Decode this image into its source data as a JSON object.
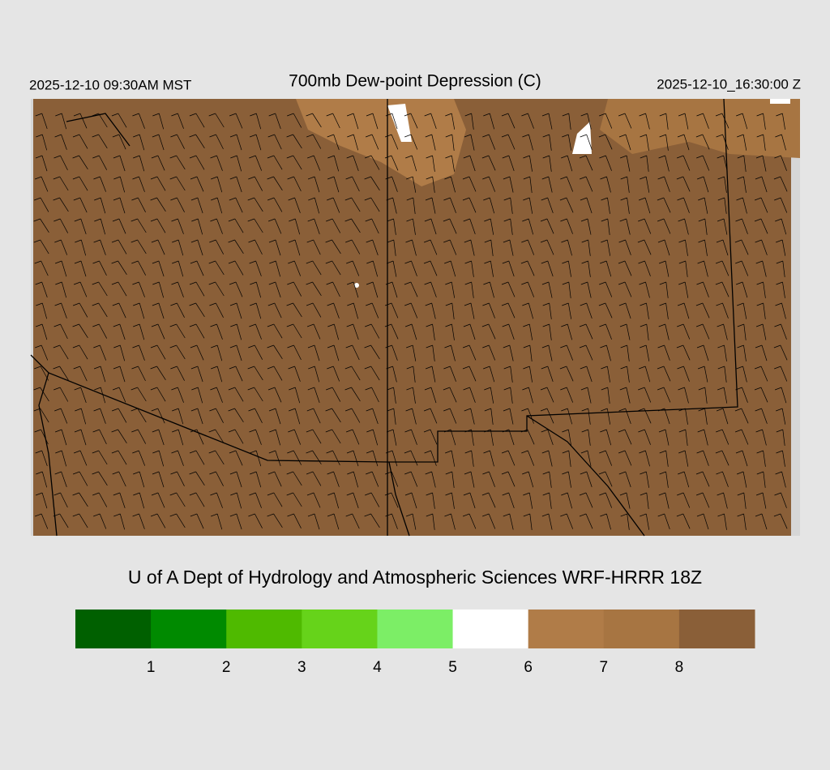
{
  "header": {
    "left": "2025-12-10 09:30AM MST",
    "title": "700mb Dew-point Depression (C)",
    "right": "2025-12-10_16:30:00 Z"
  },
  "credit": "U of A Dept of Hydrology and Atmospheric Sciences WRF-HRRR 18Z",
  "colorbar": {
    "colors": [
      "#006000",
      "#008a00",
      "#4fba00",
      "#66d31a",
      "#7cee66",
      "#ffffff",
      "#b07c48",
      "#a77542",
      "#8a5f38"
    ],
    "ticks": [
      1,
      2,
      3,
      4,
      5,
      6,
      7,
      8
    ]
  }
}
